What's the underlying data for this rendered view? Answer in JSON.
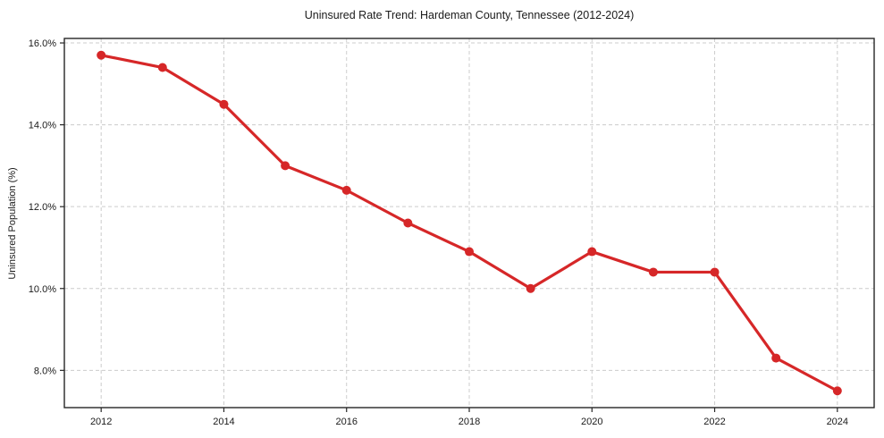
{
  "chart_data": {
    "type": "line",
    "title": "Uninsured Rate Trend: Hardeman County, Tennessee (2012-2024)",
    "xlabel": "",
    "ylabel": "Uninsured Population (%)",
    "x": [
      2012,
      2013,
      2014,
      2015,
      2016,
      2017,
      2018,
      2019,
      2020,
      2021,
      2022,
      2023,
      2024
    ],
    "values": [
      15.7,
      15.4,
      14.5,
      13.0,
      12.4,
      11.6,
      10.9,
      10.0,
      10.9,
      10.4,
      10.4,
      8.3,
      7.5
    ],
    "x_ticks": [
      {
        "v": 2012,
        "label": "2012"
      },
      {
        "v": 2014,
        "label": "2014"
      },
      {
        "v": 2016,
        "label": "2016"
      },
      {
        "v": 2018,
        "label": "2018"
      },
      {
        "v": 2020,
        "label": "2020"
      },
      {
        "v": 2022,
        "label": "2022"
      },
      {
        "v": 2024,
        "label": "2024"
      }
    ],
    "y_ticks": [
      {
        "v": 8.0,
        "label": "8.0%"
      },
      {
        "v": 10.0,
        "label": "10.0%"
      },
      {
        "v": 12.0,
        "label": "12.0%"
      },
      {
        "v": 14.0,
        "label": "14.0%"
      },
      {
        "v": 16.0,
        "label": "16.0%"
      }
    ],
    "xlim": [
      2011.4,
      2024.6
    ],
    "ylim": [
      7.09,
      16.11
    ],
    "grid": true,
    "legend_position": "none",
    "colors": {
      "line": "#d62728",
      "marker": "#d62728",
      "grid": "#cccccc",
      "spine": "#262626",
      "text": "#1a1a1a",
      "background": "#ffffff"
    }
  }
}
